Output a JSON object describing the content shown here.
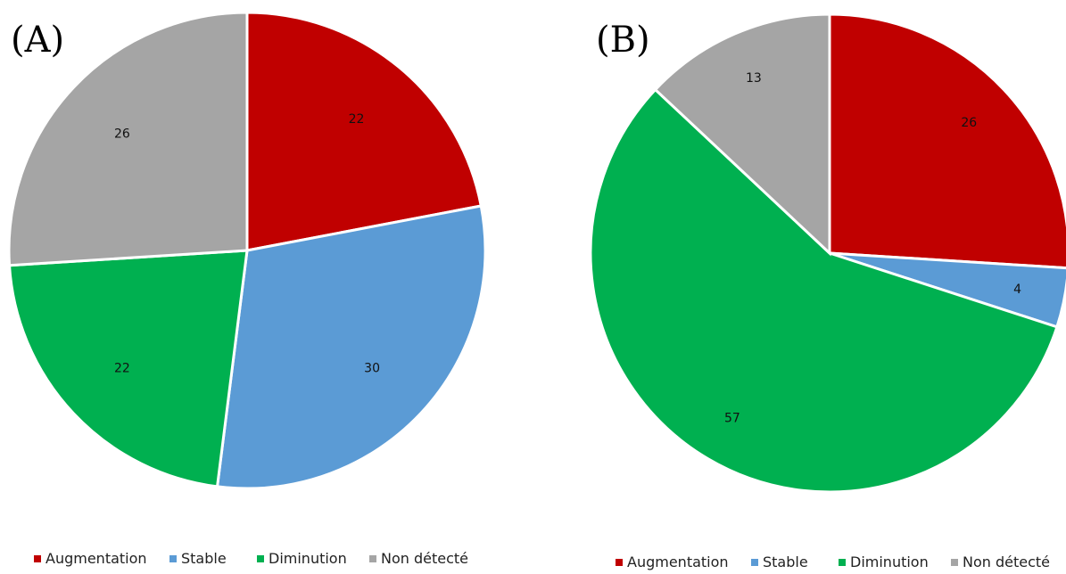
{
  "chart_data": [
    {
      "type": "pie",
      "panel_label": "(A)",
      "categories": [
        "Augmentation",
        "Stable",
        "Diminution",
        "Non détecté"
      ],
      "values": [
        22,
        30,
        22,
        26
      ],
      "colors": [
        "#c00000",
        "#5b9bd5",
        "#00b050",
        "#a5a5a5"
      ],
      "legend": {
        "position": "bottom"
      }
    },
    {
      "type": "pie",
      "panel_label": "(B)",
      "categories": [
        "Augmentation",
        "Stable",
        "Diminution",
        "Non détecté"
      ],
      "values": [
        26,
        4,
        57,
        13
      ],
      "colors": [
        "#c00000",
        "#5b9bd5",
        "#00b050",
        "#a5a5a5"
      ],
      "legend": {
        "position": "bottom"
      }
    }
  ]
}
